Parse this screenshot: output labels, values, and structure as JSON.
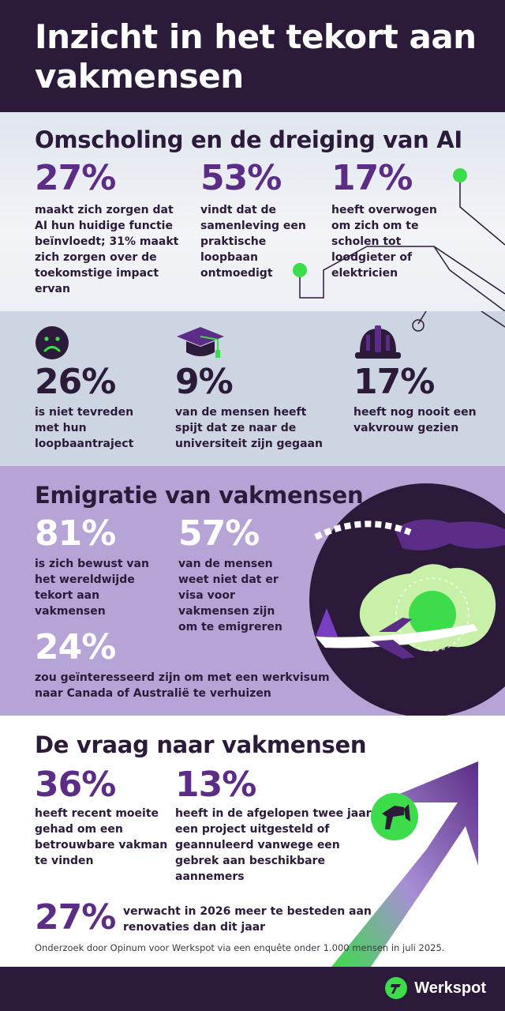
{
  "header": {
    "title": "Inzicht in het tekort aan vakmensen"
  },
  "ai_section": {
    "heading": "Omscholing en de dreiging van AI",
    "stats": [
      {
        "value": "27%",
        "text": "maakt zich zorgen dat AI hun huidige functie beïnvloedt; 31% maakt zich zorgen over de toekomstige impact ervan"
      },
      {
        "value": "53%",
        "text": "vindt dat de samenleving een praktische loopbaan ontmoedigt"
      },
      {
        "value": "17%",
        "text": "heeft overwogen om zich om te scholen tot loodgieter of elektricien"
      }
    ]
  },
  "career_section": {
    "stats": [
      {
        "value": "26%",
        "text": "is niet tevreden met hun loopbaantraject",
        "icon": "sad-face-icon"
      },
      {
        "value": "9%",
        "text": "van de mensen heeft spijt dat ze naar de universiteit zijn gegaan",
        "icon": "graduation-cap-icon"
      },
      {
        "value": "17%",
        "text": "heeft nog nooit een vakvrouw gezien",
        "icon": "hard-hat-icon"
      }
    ]
  },
  "emigration_section": {
    "heading": "Emigratie van vakmensen",
    "stats": [
      {
        "value": "81%",
        "text": "is zich bewust van het wereldwijde tekort aan vakmensen"
      },
      {
        "value": "57%",
        "text": "van de mensen weet niet dat er visa voor vakmensen zijn om te emigreren"
      },
      {
        "value": "24%",
        "text": "zou geïnteresseerd zijn om met een werkvisum naar Canada of Australië te verhuizen"
      }
    ]
  },
  "demand_section": {
    "heading": "De vraag naar vakmensen",
    "stats": [
      {
        "value": "36%",
        "text": "heeft recent moeite gehad om een betrouwbare vakman te vinden"
      },
      {
        "value": "13%",
        "text": "heeft in de afgelopen twee jaar een project uitgesteld of geannuleerd vanwege een gebrek aan beschikbare aannemers"
      },
      {
        "value": "27%",
        "text": "verwacht in 2026 meer te besteden aan renovaties dan dit jaar"
      }
    ],
    "source": "Onderzoek door Opinum voor Werkspot via een enquête onder 1.000 mensen in juli 2025."
  },
  "footer": {
    "brand": "Werkspot"
  },
  "colors": {
    "dark": "#2b1a3a",
    "purple": "#5b2d86",
    "green": "#3ddc4a",
    "lavender": "#b7a4d6",
    "grey_blue": "#ced5e2"
  }
}
